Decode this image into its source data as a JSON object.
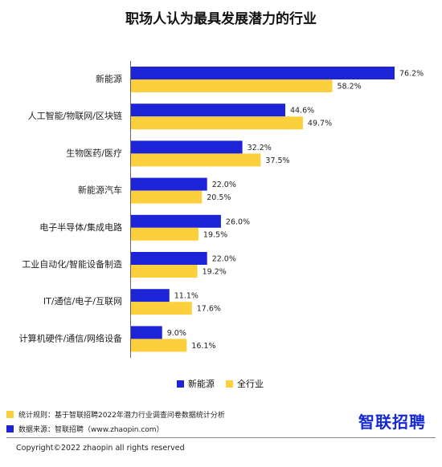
{
  "title": "职场人认为最具发展潜力的行业",
  "legend": {
    "series1_label": "新能源",
    "series2_label": "全行业"
  },
  "colors": {
    "series1": "#1d24d8",
    "series2": "#fcd03c"
  },
  "chart_data": {
    "type": "bar",
    "orientation": "horizontal",
    "title": "职场人认为最具发展潜力的行业",
    "categories": [
      "新能源",
      "人工智能/物联网/区块链",
      "生物医药/医疗",
      "新能源汽车",
      "电子半导体/集成电路",
      "工业自动化/智能设备制造",
      "IT/通信/电子/互联网",
      "计算机硬件/通信/网络设备"
    ],
    "series": [
      {
        "name": "新能源",
        "values": [
          76.2,
          44.6,
          32.2,
          22.0,
          26.0,
          22.0,
          11.1,
          9.0
        ],
        "labels": [
          "76.2%",
          "44.6%",
          "32.2%",
          "22.0%",
          "26.0%",
          "22.0%",
          "11.1%",
          "9.0%"
        ]
      },
      {
        "name": "全行业",
        "values": [
          58.2,
          49.7,
          37.5,
          20.5,
          19.5,
          19.2,
          17.6,
          16.1
        ],
        "labels": [
          "58.2%",
          "49.7%",
          "37.5%",
          "20.5%",
          "19.5%",
          "19.2%",
          "17.6%",
          "16.1%"
        ]
      }
    ],
    "xlim": [
      0,
      76.2
    ],
    "unit": "%",
    "grid": false,
    "legend_position": "bottom"
  },
  "notes": {
    "rule": "统计规则：基于智联招聘2022年潜力行业调查问卷数据统计分析",
    "source": "数据来源：智联招聘（www.zhaopin.com）"
  },
  "logo_text": "智联招聘",
  "copyright": "Copyright©2022 zhaopin all rights reserved"
}
